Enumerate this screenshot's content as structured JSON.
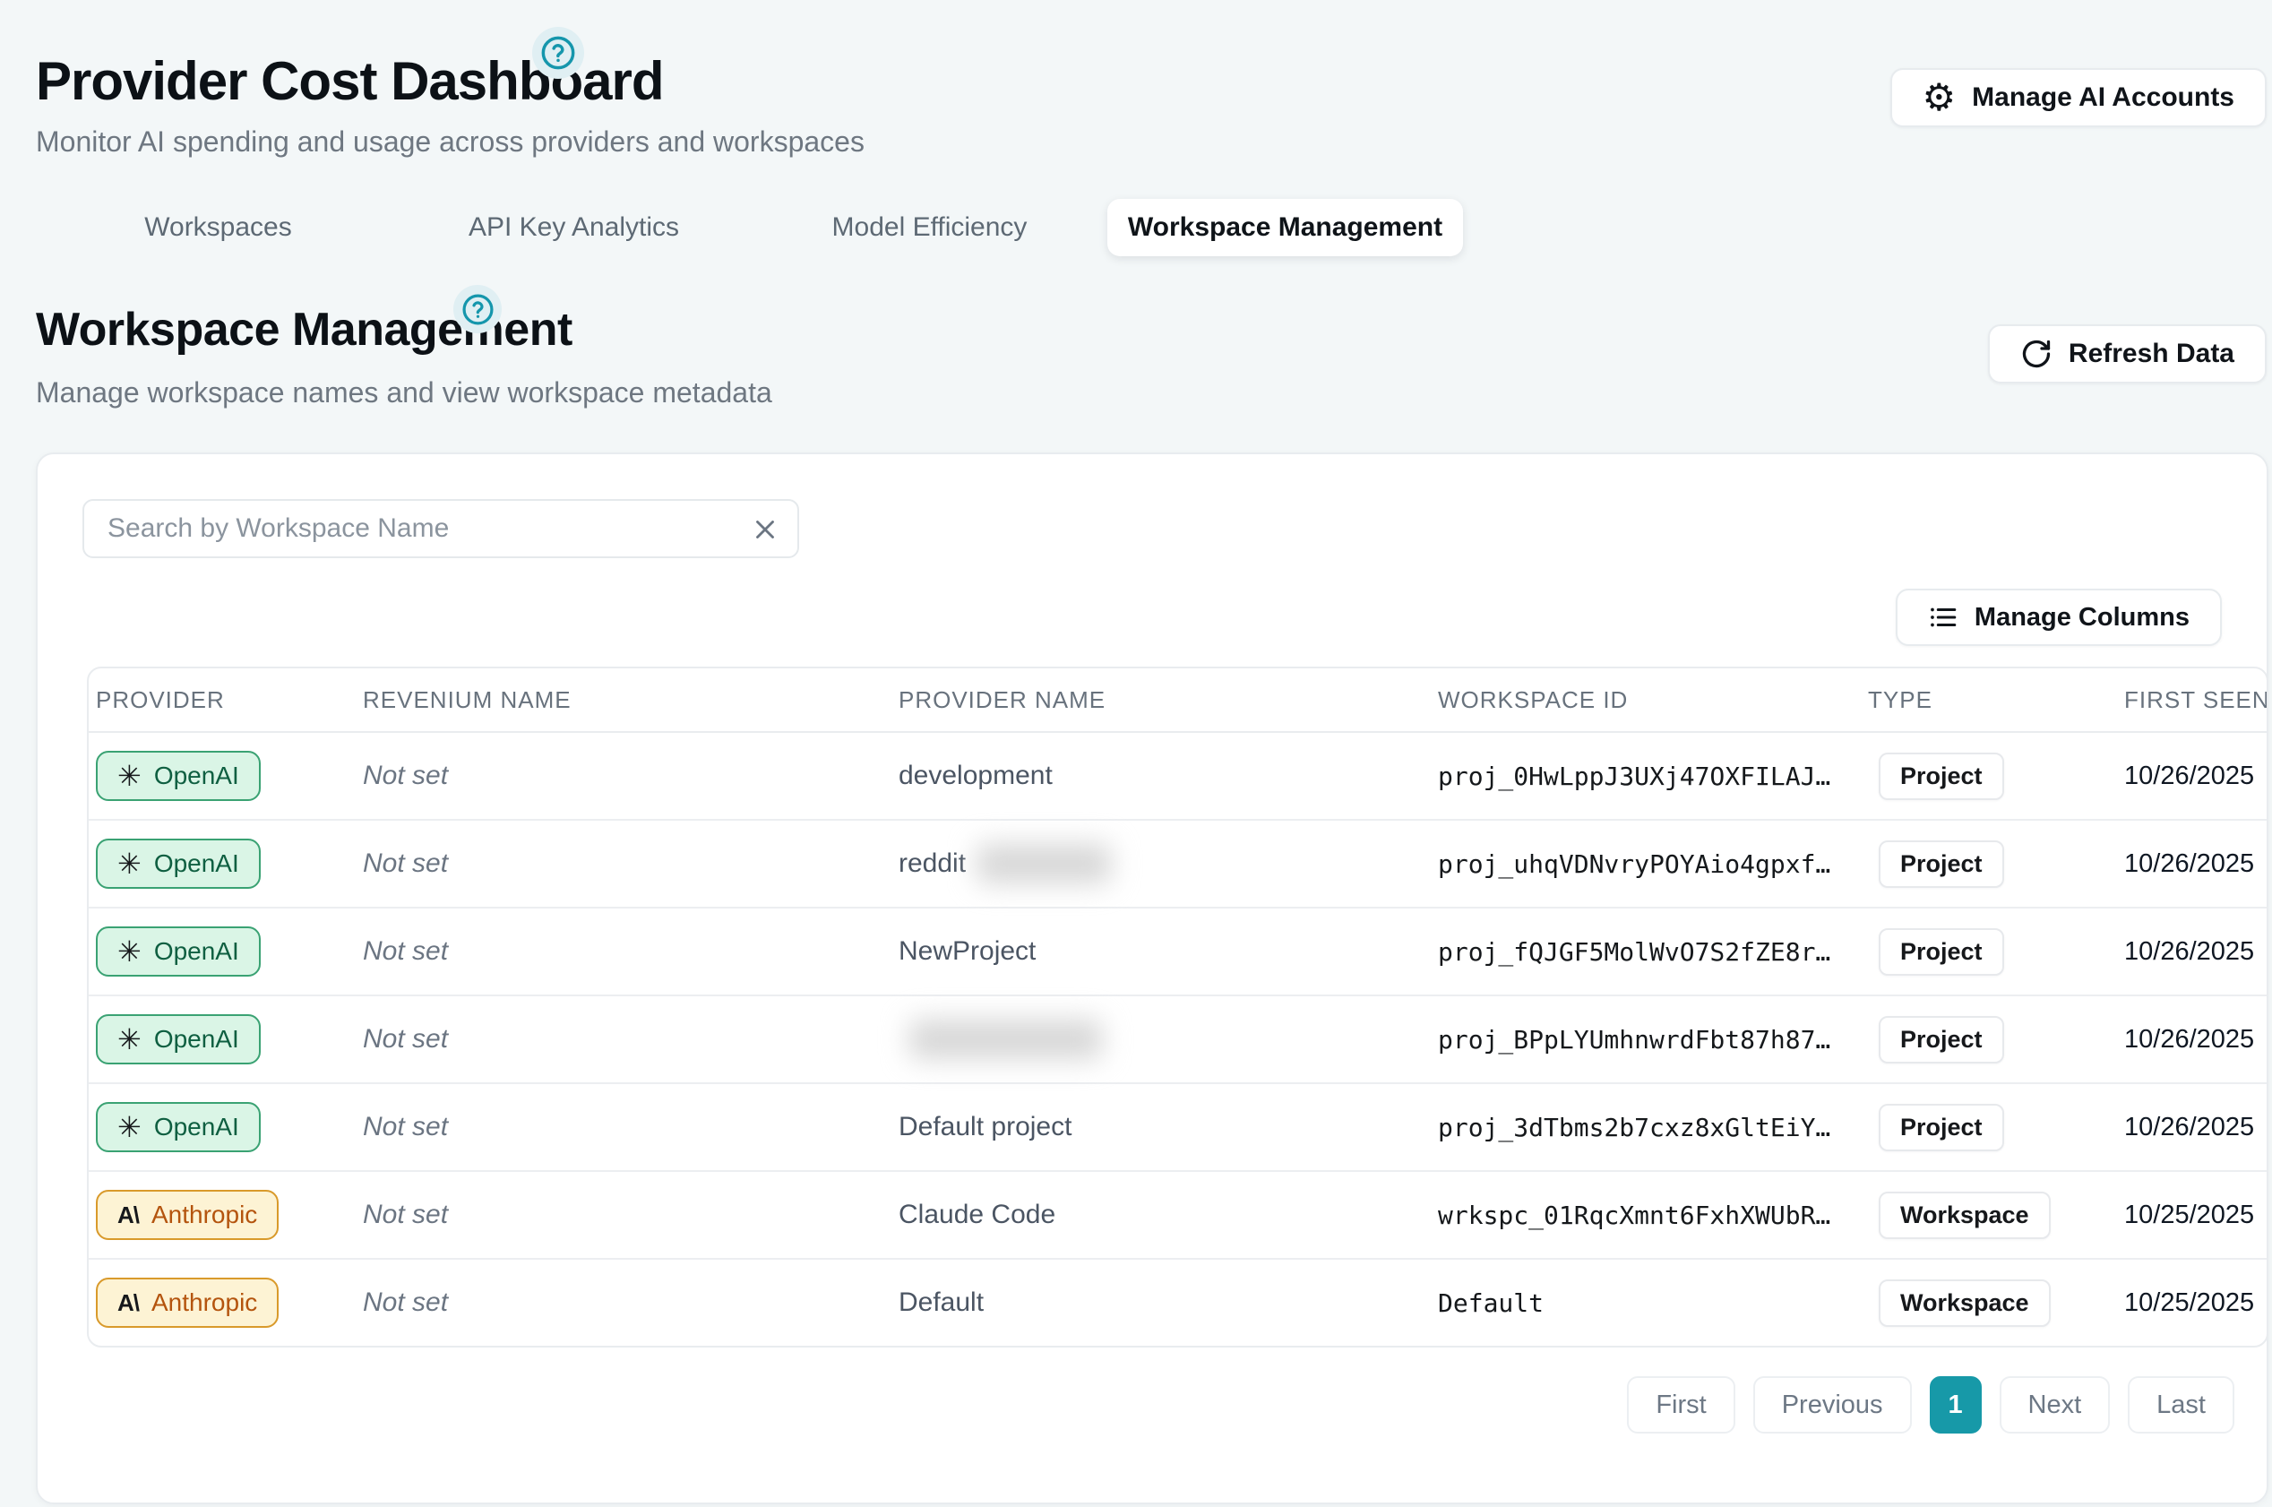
{
  "header": {
    "title": "Provider Cost Dashboard",
    "subtitle": "Monitor AI spending and usage across providers and workspaces",
    "manage_accounts_label": "Manage AI Accounts"
  },
  "tabs": [
    {
      "label": "Workspaces",
      "active": false
    },
    {
      "label": "API Key Analytics",
      "active": false
    },
    {
      "label": "Model Efficiency",
      "active": false
    },
    {
      "label": "Workspace Management",
      "active": true
    }
  ],
  "section": {
    "title": "Workspace Management",
    "subtitle": "Manage workspace names and view workspace metadata",
    "refresh_label": "Refresh Data"
  },
  "toolbar": {
    "search_placeholder": "Search by Workspace Name",
    "manage_columns_label": "Manage Columns"
  },
  "icons": {
    "help": "question-mark-in-circle",
    "gear": "⚙",
    "openai_logo": "✳",
    "anthropic_logo": "A\\"
  },
  "table": {
    "headers": [
      "PROVIDER",
      "REVENIUM NAME",
      "PROVIDER NAME",
      "WORKSPACE ID",
      "TYPE",
      "FIRST SEEN"
    ],
    "rows": [
      {
        "provider": "OpenAI",
        "revenium_name": "Not set",
        "provider_name": "development",
        "provider_name_redacted": false,
        "workspace_id": "proj_0HwLppJ3UXj47OXFILAJ…",
        "type": "Project",
        "first_seen": "10/26/2025"
      },
      {
        "provider": "OpenAI",
        "revenium_name": "Not set",
        "provider_name": "reddit",
        "provider_name_redacted": true,
        "workspace_id": "proj_uhqVDNvryPOYAio4gpxf…",
        "type": "Project",
        "first_seen": "10/26/2025"
      },
      {
        "provider": "OpenAI",
        "revenium_name": "Not set",
        "provider_name": "NewProject",
        "provider_name_redacted": false,
        "workspace_id": "proj_fQJGF5MolWvO7S2fZE8r…",
        "type": "Project",
        "first_seen": "10/26/2025"
      },
      {
        "provider": "OpenAI",
        "revenium_name": "Not set",
        "provider_name": "",
        "provider_name_redacted": true,
        "workspace_id": "proj_BPpLYUmhnwrdFbt87h87…",
        "type": "Project",
        "first_seen": "10/26/2025"
      },
      {
        "provider": "OpenAI",
        "revenium_name": "Not set",
        "provider_name": "Default project",
        "provider_name_redacted": false,
        "workspace_id": "proj_3dTbms2b7cxz8xGltEiY…",
        "type": "Project",
        "first_seen": "10/26/2025"
      },
      {
        "provider": "Anthropic",
        "revenium_name": "Not set",
        "provider_name": "Claude Code",
        "provider_name_redacted": false,
        "workspace_id": "wrkspc_01RqcXmnt6FxhXWUbR…",
        "type": "Workspace",
        "first_seen": "10/25/2025"
      },
      {
        "provider": "Anthropic",
        "revenium_name": "Not set",
        "provider_name": "Default",
        "provider_name_redacted": false,
        "workspace_id": "Default",
        "type": "Workspace",
        "first_seen": "10/25/2025"
      }
    ]
  },
  "pagination": {
    "first": "First",
    "previous": "Previous",
    "current_page": "1",
    "next": "Next",
    "last": "Last"
  },
  "colors": {
    "accent_teal": "#1799a8",
    "page_background": "#f3f7f8",
    "openai_badge_bg": "#daf5e6",
    "openai_badge_border": "#3aa273",
    "openai_badge_text": "#0f5f41",
    "anthropic_badge_bg": "#fdf3d4",
    "anthropic_badge_border": "#d99a2b",
    "anthropic_badge_text": "#b4540e",
    "pagination_active_bg": "#1799a8"
  }
}
